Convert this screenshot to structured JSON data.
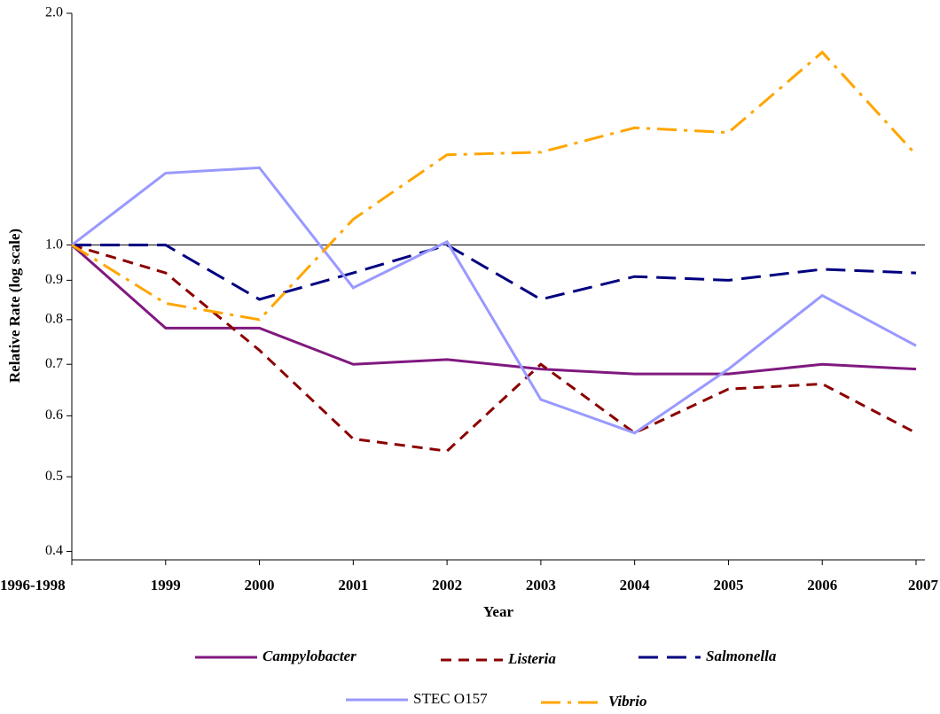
{
  "chart_data": {
    "type": "line",
    "log_scale": true,
    "y_label": "Relative Rate (log scale)",
    "x_label": "Year",
    "categories": [
      "1996-1998",
      "1999",
      "2000",
      "2001",
      "2002",
      "2003",
      "2004",
      "2005",
      "2006",
      "2007"
    ],
    "ylim": [
      0.39,
      2.0
    ],
    "yticks": [
      0.4,
      0.5,
      0.6,
      0.7,
      0.8,
      0.9,
      {
        "value": 1,
        "label": "1.0"
      },
      {
        "value": 2,
        "label": "2.0"
      }
    ],
    "reference_line": 1,
    "series": [
      {
        "name": "Campylobacter",
        "color": "#80197f",
        "dash": "solid",
        "font_style": "italic",
        "values": [
          1.0,
          0.78,
          0.78,
          0.7,
          0.71,
          0.69,
          0.68,
          0.68,
          0.7,
          0.69
        ]
      },
      {
        "name": "Listeria",
        "color": "#8b0000",
        "dash": "dashed",
        "font_style": "italic",
        "values": [
          1.0,
          0.92,
          0.73,
          0.56,
          0.54,
          0.7,
          0.57,
          0.65,
          0.66,
          0.57
        ]
      },
      {
        "name": "Salmonella",
        "color": "#000080",
        "dash": "longdash",
        "font_style": "italic",
        "values": [
          1.0,
          1.0,
          0.85,
          0.92,
          1.0,
          0.85,
          0.91,
          0.9,
          0.93,
          0.92
        ]
      },
      {
        "name": "STEC O157",
        "color": "#9999ff",
        "dash": "solid",
        "font_style": "normal",
        "values": [
          1.0,
          1.24,
          1.26,
          0.88,
          1.01,
          0.63,
          0.57,
          0.69,
          0.86,
          0.74
        ]
      },
      {
        "name": "Vibrio",
        "color": "#ffa500",
        "dash": "dashdot",
        "font_style": "italic",
        "values": [
          1.0,
          0.84,
          0.8,
          1.08,
          1.31,
          1.32,
          1.42,
          1.4,
          1.78,
          1.31
        ]
      }
    ]
  }
}
